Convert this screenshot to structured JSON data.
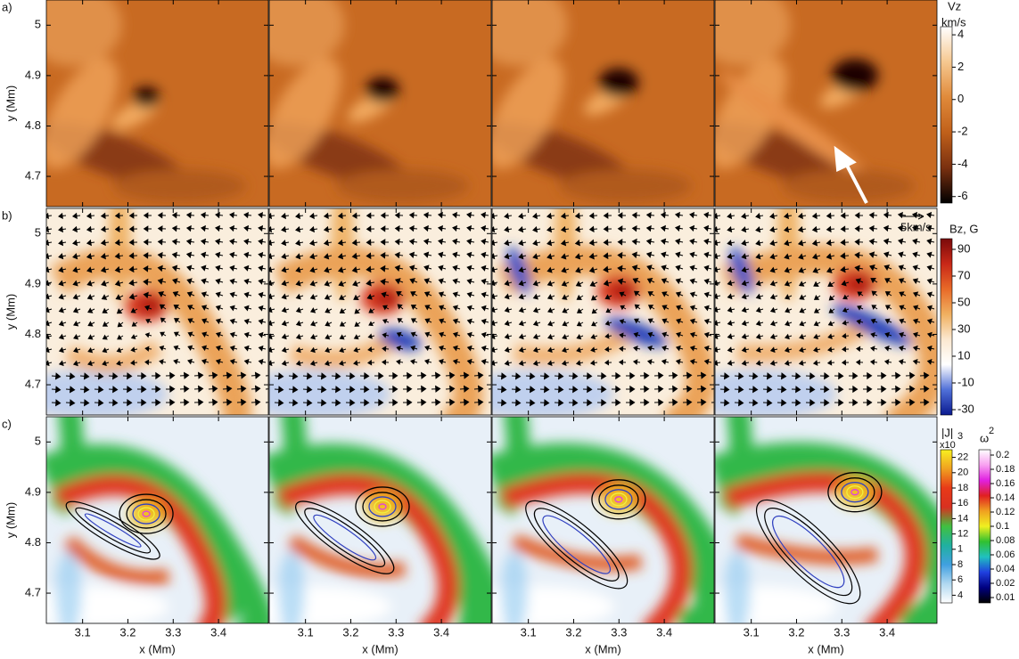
{
  "figure": {
    "x_axis": {
      "label": "x (Mm)",
      "lim": [
        3.02,
        3.51
      ],
      "ticks": [
        3.1,
        3.2,
        3.3,
        3.4
      ]
    },
    "y_axis": {
      "label": "y (Mm)",
      "lim": [
        4.64,
        5.05
      ],
      "ticks": [
        5,
        4.9,
        4.8,
        4.7
      ]
    },
    "vector_scale_label": "5km/s",
    "rows": [
      {
        "label": "a)",
        "colorbars": [
          {
            "title": "Vz",
            "unit": "km/s",
            "lim": [
              -6.4,
              4.5
            ],
            "ticks": [
              4,
              2,
              0,
              -2,
              -4,
              -6
            ],
            "colors": [
              "#ffffff",
              "#f6c890",
              "#e08a3a",
              "#c0601a",
              "#7a3010",
              "#000000"
            ]
          }
        ]
      },
      {
        "label": "b)",
        "colorbars": [
          {
            "title": "Bz, G",
            "lim": [
              -34,
              98
            ],
            "ticks": [
              90,
              70,
              50,
              30,
              10,
              -10,
              -30
            ],
            "colors": [
              "#7a0a0a",
              "#c82818",
              "#e86a28",
              "#f0b060",
              "#fbe8d0",
              "#ffffff",
              "#5070d8",
              "#0a1a90"
            ]
          }
        ]
      },
      {
        "label": "c)",
        "colorbars": [
          {
            "title": "|J|",
            "multiplier": "x10",
            "exponent": "3",
            "lim": [
              3,
              23
            ],
            "ticks": [
              22,
              20,
              18,
              16,
              14,
              12,
              {
                "value": 10,
                "label": "1"
              },
              8,
              6,
              4
            ],
            "colors": [
              "#f8f020",
              "#f0a020",
              "#e83a18",
              "#d83020",
              "#40c040",
              "#20b0a0",
              "#40a0e0",
              "#b0d8f0",
              "#ffffff"
            ]
          },
          {
            "title": "ω",
            "exponent": "2",
            "ticks": [
              0.2,
              0.18,
              0.16,
              0.14,
              0.12,
              0.1,
              0.08,
              0.06,
              0.04,
              0.02,
              0.01
            ],
            "colors": [
              "#ffffff",
              "#f8a0f0",
              "#e020e0",
              "#e02020",
              "#f0a020",
              "#f0f020",
              "#30c030",
              "#20c0c0",
              "#2040e0",
              "#000080",
              "#000000"
            ]
          }
        ]
      }
    ]
  }
}
